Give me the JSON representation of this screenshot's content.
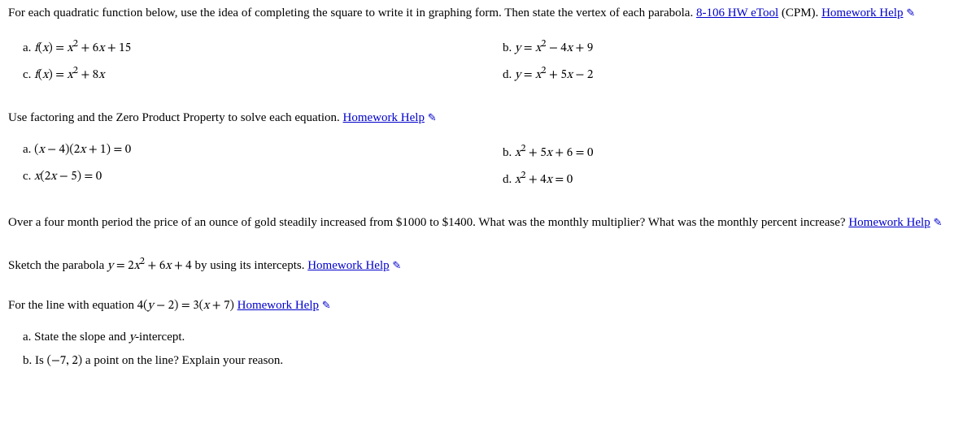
{
  "p1": {
    "prompt_pre": "For each quadratic function below, use the idea of completing the square to write it in graphing form. Then state the vertex of each parabola. ",
    "etool_text": "8-106 HW eTool",
    "cpm": " (CPM). ",
    "hw_help": "Homework Help",
    "a_label": "a.  ",
    "a_math": "f(x) = x² + 6x + 15",
    "b_label": "b.  ",
    "b_math": "y = x² − 4x + 9",
    "c_label": "c.  ",
    "c_math": "f(x) = x² + 8x",
    "d_label": "d.  ",
    "d_math": "y = x² + 5x − 2"
  },
  "p2": {
    "prompt": "Use factoring and the Zero Product Property to solve each equation. ",
    "hw_help": "Homework Help",
    "a_label": "a.  ",
    "a_math": "(x − 4)(2x + 1) = 0",
    "b_label": "b.  ",
    "b_math": "x² + 5x + 6 = 0",
    "c_label": "c.  ",
    "c_math": "x(2x − 5) = 0",
    "d_label": "d.  ",
    "d_math": "x² + 4x = 0"
  },
  "p3": {
    "prompt": "Over a four month period the price of an ounce of gold steadily increased from $1000 to $1400. What was the monthly multiplier? What was the monthly percent increase? ",
    "hw_help": "Homework Help"
  },
  "p4": {
    "prompt_pre": "Sketch the parabola ",
    "math": "y = 2x² + 6x + 4",
    "prompt_post": " by using its intercepts. ",
    "hw_help": "Homework Help"
  },
  "p5": {
    "prompt_pre": "For the line with equation ",
    "math": "4(y − 2) = 3(x + 7)",
    "space": " ",
    "hw_help": "Homework Help",
    "a_label": "a. ",
    "a_text_pre": "State the slope and ",
    "a_yint": "y",
    "a_text_post": "-intercept.",
    "b_label": "b. ",
    "b_text_pre": "Is ",
    "b_point": "(−7, 2)",
    "b_text_post": " a point on the line? Explain your reason."
  },
  "arrow": " ✎"
}
